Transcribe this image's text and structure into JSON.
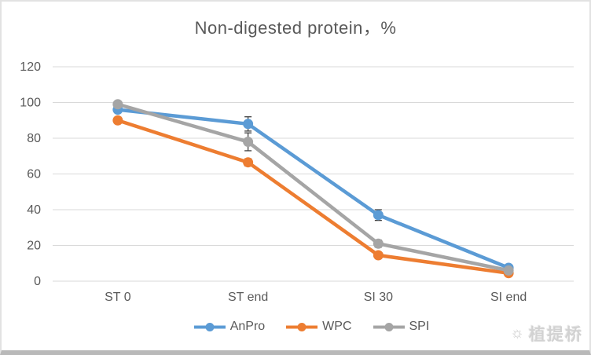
{
  "frame": {
    "watermark_text": "植提桥",
    "watermark_icon": "☼"
  },
  "chart_data": {
    "type": "line",
    "title": "Non-digested protein，%",
    "categories": [
      "ST 0",
      "ST end",
      "SI 30",
      "SI end"
    ],
    "xlabel": "",
    "ylabel": "",
    "ylim": [
      0,
      120
    ],
    "ytick_step": 20,
    "grid": true,
    "legend_position": "bottom",
    "series": [
      {
        "name": "AnPro",
        "color": "#5B9BD5",
        "values": [
          96,
          88,
          37,
          7.5
        ],
        "errors": [
          0,
          4,
          3,
          0
        ]
      },
      {
        "name": "WPC",
        "color": "#ED7D31",
        "values": [
          90,
          66.5,
          14.5,
          4.5
        ],
        "errors": [
          0,
          2,
          0,
          0
        ]
      },
      {
        "name": "SPI",
        "color": "#A5A5A5",
        "values": [
          99,
          78,
          21,
          6
        ],
        "errors": [
          0,
          5,
          2,
          0
        ]
      }
    ],
    "axis_label_color": "#595959",
    "gridline_color": "#d9d9d9",
    "errorbar_color": "#404040"
  }
}
